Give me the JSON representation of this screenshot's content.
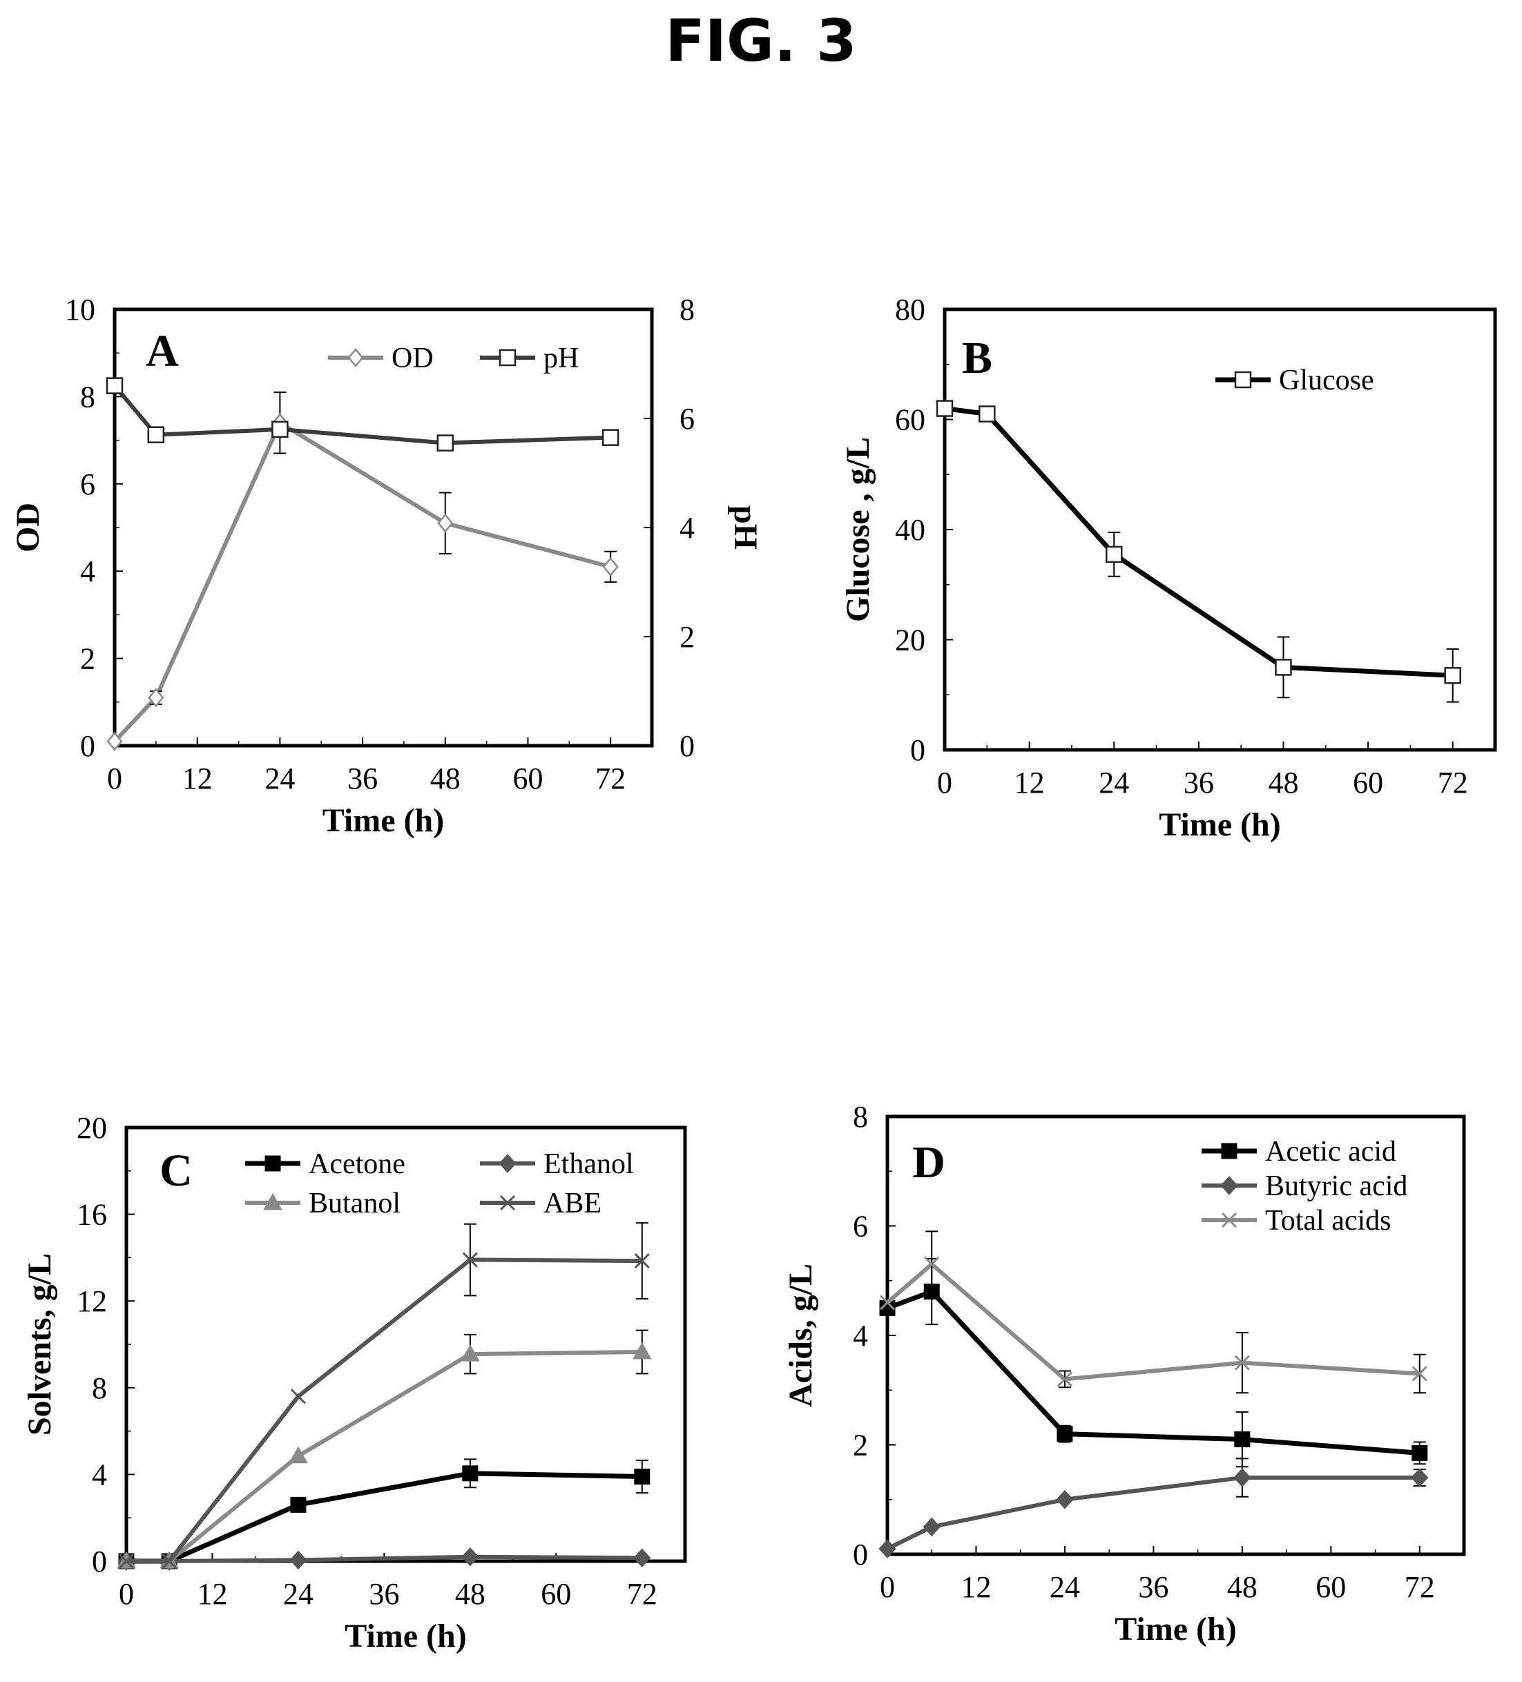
{
  "figure": {
    "title": "FIG. 3"
  },
  "colors": {
    "black": "#000000",
    "dark": "#3c3c3c",
    "gray": "#8a8a8a",
    "mid": "#555555"
  },
  "chart_data": [
    {
      "id": "A",
      "type": "line",
      "panel_label": "A",
      "title": "",
      "xlabel": "Time (h)",
      "ylabel": "OD",
      "y2label": "pH",
      "xlim": [
        0,
        78
      ],
      "xticks": [
        0,
        12,
        24,
        36,
        48,
        60,
        72
      ],
      "ylim": [
        0,
        10
      ],
      "yticks": [
        0,
        2,
        4,
        6,
        8,
        10
      ],
      "y2lim": [
        0,
        8
      ],
      "y2ticks": [
        0,
        2,
        4,
        6,
        8
      ],
      "legend_placement": "top-right",
      "grid": false,
      "series": [
        {
          "name": "OD",
          "axis": "left",
          "marker": "diamond-open",
          "color": "#8a8a8a",
          "x": [
            0,
            6,
            24,
            48,
            72
          ],
          "y": [
            0.1,
            1.1,
            7.4,
            5.1,
            4.1
          ],
          "err": [
            0,
            0.15,
            0.7,
            0.7,
            0.35
          ]
        },
        {
          "name": "pH",
          "axis": "right",
          "marker": "square-open",
          "color": "#3c3c3c",
          "x": [
            0,
            6,
            24,
            48,
            72
          ],
          "y": [
            6.6,
            5.7,
            5.8,
            5.55,
            5.65
          ],
          "err": [
            0,
            0,
            0,
            0,
            0
          ]
        }
      ]
    },
    {
      "id": "B",
      "type": "line",
      "panel_label": "B",
      "title": "",
      "xlabel": "Time (h)",
      "ylabel": "Glucose , g/L",
      "xlim": [
        0,
        78
      ],
      "xticks": [
        0,
        12,
        24,
        36,
        48,
        60,
        72
      ],
      "ylim": [
        0,
        80
      ],
      "yticks": [
        0,
        20,
        40,
        60,
        80
      ],
      "legend_placement": "top-right",
      "grid": false,
      "series": [
        {
          "name": "Glucose",
          "axis": "left",
          "marker": "square-open",
          "color": "#000000",
          "x": [
            0,
            6,
            24,
            48,
            72
          ],
          "y": [
            62,
            61,
            35.5,
            15,
            13.5
          ],
          "err": [
            0,
            0,
            4,
            5.5,
            4.8
          ]
        }
      ]
    },
    {
      "id": "C",
      "type": "line",
      "panel_label": "C",
      "title": "",
      "xlabel": "Time (h)",
      "ylabel": "Solvents, g/L",
      "xlim": [
        0,
        78
      ],
      "xticks": [
        0,
        12,
        24,
        36,
        48,
        60,
        72
      ],
      "ylim": [
        0,
        20
      ],
      "yticks": [
        0,
        4,
        8,
        12,
        16,
        20
      ],
      "legend_placement": "top",
      "grid": false,
      "series": [
        {
          "name": "Acetone",
          "axis": "left",
          "marker": "square-filled",
          "color": "#000000",
          "x": [
            0,
            6,
            24,
            48,
            72
          ],
          "y": [
            0,
            0,
            2.6,
            4.05,
            3.9
          ],
          "err": [
            0,
            0,
            0,
            0.65,
            0.75
          ]
        },
        {
          "name": "Ethanol",
          "axis": "left",
          "marker": "diamond-filled",
          "color": "#555555",
          "x": [
            0,
            6,
            24,
            48,
            72
          ],
          "y": [
            0,
            0,
            0.05,
            0.2,
            0.15
          ],
          "err": [
            0,
            0,
            0,
            0,
            0
          ]
        },
        {
          "name": "Butanol",
          "axis": "left",
          "marker": "triangle-filled",
          "color": "#8a8a8a",
          "x": [
            0,
            6,
            24,
            48,
            72
          ],
          "y": [
            0,
            0,
            4.85,
            9.55,
            9.65
          ],
          "err": [
            0,
            0,
            0,
            0.9,
            1.0
          ]
        },
        {
          "name": "ABE",
          "axis": "left",
          "marker": "x",
          "color": "#555555",
          "x": [
            0,
            6,
            24,
            48,
            72
          ],
          "y": [
            0,
            0,
            7.6,
            13.9,
            13.85
          ],
          "err": [
            0,
            0,
            0,
            1.65,
            1.75
          ]
        }
      ]
    },
    {
      "id": "D",
      "type": "line",
      "panel_label": "D",
      "title": "",
      "xlabel": "Time (h)",
      "ylabel": "Acids, g/L",
      "xlim": [
        0,
        78
      ],
      "xticks": [
        0,
        12,
        24,
        36,
        48,
        60,
        72
      ],
      "ylim": [
        0,
        8
      ],
      "yticks": [
        0,
        2,
        4,
        6,
        8
      ],
      "legend_placement": "top-right",
      "grid": false,
      "series": [
        {
          "name": "Acetic acid",
          "axis": "left",
          "marker": "square-filled",
          "color": "#000000",
          "x": [
            0,
            6,
            24,
            48,
            72
          ],
          "y": [
            4.5,
            4.8,
            2.2,
            2.1,
            1.85
          ],
          "err": [
            0,
            0.6,
            0.15,
            0.5,
            0.2
          ]
        },
        {
          "name": "Butyric acid",
          "axis": "left",
          "marker": "diamond-filled",
          "color": "#555555",
          "x": [
            0,
            6,
            24,
            48,
            72
          ],
          "y": [
            0.1,
            0.5,
            1.0,
            1.4,
            1.4
          ],
          "err": [
            0,
            0,
            0,
            0.35,
            0.15
          ]
        },
        {
          "name": "Total acids",
          "axis": "left",
          "marker": "x",
          "color": "#8a8a8a",
          "x": [
            0,
            6,
            24,
            48,
            72
          ],
          "y": [
            4.6,
            5.3,
            3.2,
            3.5,
            3.3
          ],
          "err": [
            0,
            0.6,
            0.15,
            0.55,
            0.35
          ]
        }
      ]
    }
  ]
}
